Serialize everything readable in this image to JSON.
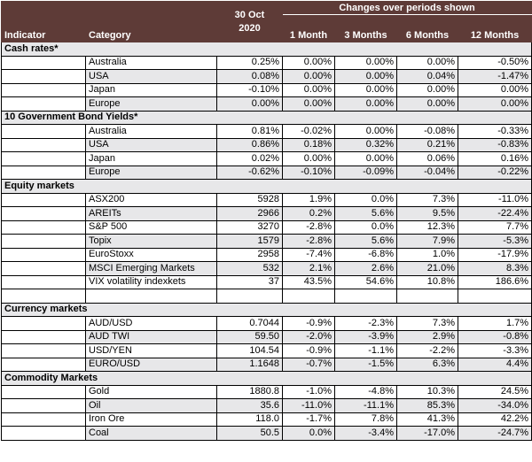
{
  "header": {
    "indicator": "Indicator",
    "category": "Category",
    "date_line1": "30 Oct",
    "date_line2": "2020",
    "periods_title": "Changes over periods shown",
    "periods": [
      "1 Month",
      "3 Months",
      "6 Months",
      "12 Months"
    ]
  },
  "sections": {
    "cash": {
      "title": "Cash rates*",
      "rows": [
        {
          "category": "Australia",
          "value": "0.25%",
          "m1": "0.00%",
          "m3": "0.00%",
          "m6": "0.00%",
          "m12": "-0.50%"
        },
        {
          "category": "USA",
          "value": "0.08%",
          "m1": "0.00%",
          "m3": "0.00%",
          "m6": "0.04%",
          "m12": "-1.47%"
        },
        {
          "category": "Japan",
          "value": "-0.10%",
          "m1": "0.00%",
          "m3": "0.00%",
          "m6": "0.00%",
          "m12": "0.00%"
        },
        {
          "category": "Europe",
          "value": "0.00%",
          "m1": "0.00%",
          "m3": "0.00%",
          "m6": "0.00%",
          "m12": "0.00%"
        }
      ]
    },
    "bonds": {
      "title": "10 Government Bond Yields*",
      "rows": [
        {
          "category": "Australia",
          "value": "0.81%",
          "m1": "-0.02%",
          "m3": "0.00%",
          "m6": "-0.08%",
          "m12": "-0.33%"
        },
        {
          "category": "USA",
          "value": "0.86%",
          "m1": "0.18%",
          "m3": "0.32%",
          "m6": "0.21%",
          "m12": "-0.83%"
        },
        {
          "category": "Japan",
          "value": "0.02%",
          "m1": "0.00%",
          "m3": "0.00%",
          "m6": "0.06%",
          "m12": "0.16%"
        },
        {
          "category": "Europe",
          "value": "-0.62%",
          "m1": "-0.10%",
          "m3": "-0.09%",
          "m6": "-0.04%",
          "m12": "-0.22%"
        }
      ]
    },
    "equity": {
      "title": "Equity markets",
      "rows": [
        {
          "category": "ASX200",
          "value": "5928",
          "m1": "1.9%",
          "m3": "0.0%",
          "m6": "7.3%",
          "m12": "-11.0%"
        },
        {
          "category": "AREITs",
          "value": "2966",
          "m1": "0.2%",
          "m3": "5.6%",
          "m6": "9.5%",
          "m12": "-22.4%"
        },
        {
          "category": "S&P 500",
          "value": "3270",
          "m1": "-2.8%",
          "m3": "0.0%",
          "m6": "12.3%",
          "m12": "7.7%"
        },
        {
          "category": "Topix",
          "value": "1579",
          "m1": "-2.8%",
          "m3": "5.6%",
          "m6": "7.9%",
          "m12": "-5.3%"
        },
        {
          "category": "EuroStoxx",
          "value": "2958",
          "m1": "-7.4%",
          "m3": "-6.8%",
          "m6": "1.0%",
          "m12": "-17.9%"
        },
        {
          "category": "MSCI Emerging Markets",
          "value": "532",
          "m1": "2.1%",
          "m3": "2.6%",
          "m6": "21.0%",
          "m12": "8.3%"
        },
        {
          "category": "VIX volatility indexkets",
          "value": "37",
          "m1": "43.5%",
          "m3": "54.6%",
          "m6": "10.8%",
          "m12": "186.6%"
        }
      ]
    },
    "currency": {
      "title": "Currency markets",
      "rows": [
        {
          "category": "AUD/USD",
          "value": "0.7044",
          "m1": "-0.9%",
          "m3": "-2.3%",
          "m6": "7.3%",
          "m12": "1.7%"
        },
        {
          "category": "AUD TWI",
          "value": "59.50",
          "m1": "-2.0%",
          "m3": "-3.9%",
          "m6": "2.9%",
          "m12": "-0.8%"
        },
        {
          "category": "USD/YEN",
          "value": "104.54",
          "m1": "-0.9%",
          "m3": "-1.1%",
          "m6": "-2.2%",
          "m12": "-3.3%"
        },
        {
          "category": "EURO/USD",
          "value": "1.1648",
          "m1": "-0.7%",
          "m3": "-1.5%",
          "m6": "6.3%",
          "m12": "4.4%"
        }
      ]
    },
    "commodity": {
      "title": "Commodity Markets",
      "rows": [
        {
          "category": "Gold",
          "value": "1880.8",
          "m1": "-1.0%",
          "m3": "-4.8%",
          "m6": "10.3%",
          "m12": "24.5%"
        },
        {
          "category": "Oil",
          "value": "35.6",
          "m1": "-11.0%",
          "m3": "-11.1%",
          "m6": "85.3%",
          "m12": "-34.0%"
        },
        {
          "category": "Iron Ore",
          "value": "118.0",
          "m1": "-1.7%",
          "m3": "7.8%",
          "m6": "41.3%",
          "m12": "42.2%"
        },
        {
          "category": "Coal",
          "value": "50.5",
          "m1": "0.0%",
          "m3": "-3.4%",
          "m6": "-17.0%",
          "m12": "-24.7%"
        }
      ]
    }
  }
}
